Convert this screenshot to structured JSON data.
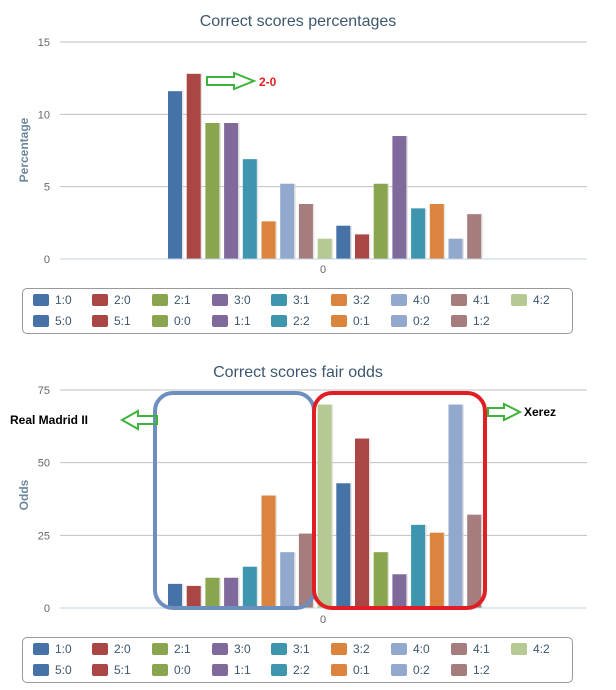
{
  "colors": {
    "1:0": "#4572a7",
    "2:0": "#aa4643",
    "2:1": "#89a54e",
    "3:0": "#80699b",
    "3:1": "#3d96ae",
    "3:2": "#db843d",
    "4:0": "#92a8cd",
    "4:1": "#a47d7c",
    "4:2": "#b5ca92",
    "5:0": "#4572a7",
    "5:1": "#aa4643",
    "0:0": "#89a54e",
    "1:1": "#80699b",
    "2:2": "#3d96ae",
    "0:1": "#db843d",
    "0:2": "#92a8cd",
    "1:2": "#a47d7c",
    "grid": "#c0c0c0",
    "axis": "#c0d0e0",
    "arrow_green": "#3cb43c",
    "annot_red": "#dd2222",
    "box_blue": "#6d8fc0",
    "box_red": "#e01e24"
  },
  "chart_data": [
    {
      "type": "bar",
      "title": "Correct scores percentages",
      "ylabel": "Percentage",
      "xlabel": "",
      "categories": [
        "0"
      ],
      "ylim": [
        0,
        15
      ],
      "yticks": [
        "0",
        "5",
        "10",
        "15"
      ],
      "grid": true,
      "legend_position": "bottom",
      "series": [
        {
          "name": "1:0",
          "values": [
            11.6
          ]
        },
        {
          "name": "2:0",
          "values": [
            12.8
          ]
        },
        {
          "name": "2:1",
          "values": [
            9.4
          ]
        },
        {
          "name": "3:0",
          "values": [
            9.4
          ]
        },
        {
          "name": "3:1",
          "values": [
            6.9
          ]
        },
        {
          "name": "3:2",
          "values": [
            2.6
          ]
        },
        {
          "name": "4:0",
          "values": [
            5.2
          ]
        },
        {
          "name": "4:1",
          "values": [
            3.8
          ]
        },
        {
          "name": "4:2",
          "values": [
            1.4
          ]
        },
        {
          "name": "5:0",
          "values": [
            2.3
          ]
        },
        {
          "name": "5:1",
          "values": [
            1.7
          ]
        },
        {
          "name": "0:0",
          "values": [
            5.2
          ]
        },
        {
          "name": "1:1",
          "values": [
            8.5
          ]
        },
        {
          "name": "2:2",
          "values": [
            3.5
          ]
        },
        {
          "name": "0:1",
          "values": [
            3.8
          ]
        },
        {
          "name": "0:2",
          "values": [
            1.4
          ]
        },
        {
          "name": "1:2",
          "values": [
            3.1
          ]
        }
      ],
      "annotations": [
        {
          "text": "2-0"
        }
      ]
    },
    {
      "type": "bar",
      "title": "Correct scores fair odds",
      "ylabel": "Odds",
      "xlabel": "",
      "categories": [
        "0"
      ],
      "ylim": [
        0,
        75
      ],
      "yticks": [
        "0",
        "25",
        "50",
        "75"
      ],
      "grid": true,
      "legend_position": "bottom",
      "series": [
        {
          "name": "1:0",
          "values": [
            8.3
          ]
        },
        {
          "name": "2:0",
          "values": [
            7.6
          ]
        },
        {
          "name": "2:1",
          "values": [
            10.4
          ]
        },
        {
          "name": "3:0",
          "values": [
            10.4
          ]
        },
        {
          "name": "3:1",
          "values": [
            14.2
          ]
        },
        {
          "name": "3:2",
          "values": [
            38.7
          ]
        },
        {
          "name": "4:0",
          "values": [
            19.2
          ]
        },
        {
          "name": "4:1",
          "values": [
            25.6
          ]
        },
        {
          "name": "4:2",
          "values": [
            70.0
          ]
        },
        {
          "name": "5:0",
          "values": [
            42.9
          ]
        },
        {
          "name": "5:1",
          "values": [
            58.3
          ]
        },
        {
          "name": "0:0",
          "values": [
            19.2
          ]
        },
        {
          "name": "1:1",
          "values": [
            11.6
          ]
        },
        {
          "name": "2:2",
          "values": [
            28.6
          ]
        },
        {
          "name": "0:1",
          "values": [
            25.9
          ]
        },
        {
          "name": "0:2",
          "values": [
            70.0
          ]
        },
        {
          "name": "1:2",
          "values": [
            32.1
          ]
        }
      ],
      "annotations": [
        {
          "text": "Real Madrid II"
        },
        {
          "text": "Xerez"
        }
      ]
    }
  ]
}
